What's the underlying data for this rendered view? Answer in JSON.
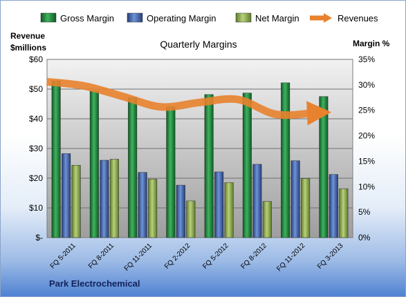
{
  "chart_data": {
    "type": "bar",
    "title": "Quarterly Margins",
    "footer": "Park Electrochemical",
    "left_axis_title_line1": "Revenue",
    "left_axis_title_line2": "$millions",
    "right_axis_title": "Margin %",
    "categories": [
      "FQ 5-2011",
      "FQ 8-2011",
      "FQ 11-2011",
      "FQ 2-2012",
      "FQ 5-2012",
      "FQ 8-2012",
      "FQ 11-2012",
      "FQ 3-2013"
    ],
    "series": [
      {
        "name": "Gross Margin",
        "axis": "right",
        "color": "#1e7d3c",
        "values": [
          30.8,
          28.8,
          27.5,
          25.7,
          28.1,
          28.4,
          30.4,
          27.7
        ]
      },
      {
        "name": "Operating Margin",
        "axis": "right",
        "color": "#3f66ad",
        "values": [
          16.5,
          15.2,
          12.8,
          10.3,
          12.9,
          14.4,
          15.1,
          12.4
        ]
      },
      {
        "name": "Net Margin",
        "axis": "right",
        "color": "#8aaa4a",
        "values": [
          14.2,
          15.4,
          11.5,
          7.2,
          10.8,
          7.1,
          11.6,
          9.6
        ]
      },
      {
        "name": "Revenues",
        "axis": "left",
        "type": "line",
        "color": "#e8822e",
        "values": [
          52.5,
          51.0,
          47.5,
          44.0,
          45.5,
          46.5,
          41.5,
          42.0
        ]
      }
    ],
    "y_left": {
      "min": 0,
      "max": 60,
      "ticks": [
        "$-",
        "$10",
        "$20",
        "$30",
        "$40",
        "$50",
        "$60"
      ]
    },
    "y_right": {
      "min": 0,
      "max": 35,
      "ticks": [
        "0%",
        "5%",
        "10%",
        "15%",
        "20%",
        "25%",
        "30%",
        "35%"
      ]
    },
    "grid": true,
    "legend_position": "top"
  }
}
